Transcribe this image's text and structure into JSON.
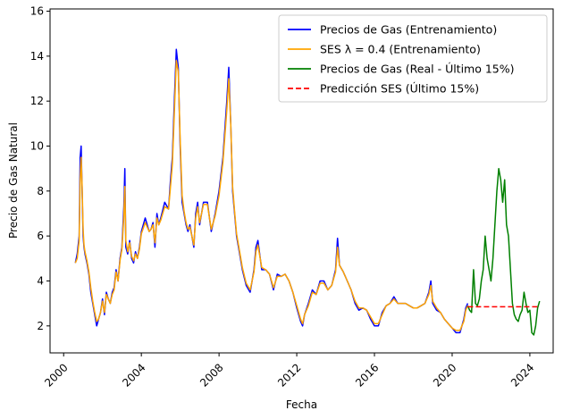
{
  "chart_data": {
    "type": "line",
    "xlabel": "Fecha",
    "ylabel": "Precio de Gas Natural",
    "xlim": [
      1999.3,
      2025.2
    ],
    "ylim": [
      0.8,
      16.1
    ],
    "x_ticks": [
      2000,
      2004,
      2008,
      2012,
      2016,
      2020,
      2024
    ],
    "x_tick_labels": [
      "2000",
      "2004",
      "2008",
      "2012",
      "2016",
      "2020",
      "2024"
    ],
    "y_ticks": [
      2,
      4,
      6,
      8,
      10,
      12,
      14,
      16
    ],
    "y_tick_labels": [
      "2",
      "4",
      "6",
      "8",
      "10",
      "12",
      "14",
      "16"
    ],
    "grid": false,
    "legend_position": "top-right",
    "series": [
      {
        "name": "Precios de Gas (Entrenamiento)",
        "color": "#0000ff",
        "style": "solid",
        "x": [
          2000.6,
          2000.7,
          2000.8,
          2000.85,
          2000.9,
          2000.95,
          2001.0,
          2001.05,
          2001.1,
          2001.2,
          2001.3,
          2001.4,
          2001.5,
          2001.6,
          2001.7,
          2001.8,
          2001.9,
          2002.0,
          2002.1,
          2002.2,
          2002.3,
          2002.4,
          2002.5,
          2002.6,
          2002.7,
          2002.8,
          2002.9,
          2003.0,
          2003.1,
          2003.15,
          2003.2,
          2003.3,
          2003.4,
          2003.5,
          2003.6,
          2003.7,
          2003.8,
          2003.9,
          2004.0,
          2004.2,
          2004.4,
          2004.5,
          2004.6,
          2004.7,
          2004.8,
          2004.9,
          2005.0,
          2005.2,
          2005.4,
          2005.5,
          2005.6,
          2005.7,
          2005.8,
          2005.9,
          2006.0,
          2006.1,
          2006.2,
          2006.3,
          2006.4,
          2006.5,
          2006.6,
          2006.7,
          2006.8,
          2006.9,
          2007.0,
          2007.2,
          2007.4,
          2007.6,
          2007.8,
          2008.0,
          2008.2,
          2008.4,
          2008.5,
          2008.6,
          2008.7,
          2008.8,
          2008.9,
          2009.0,
          2009.2,
          2009.4,
          2009.6,
          2009.7,
          2009.8,
          2009.9,
          2010.0,
          2010.2,
          2010.4,
          2010.6,
          2010.8,
          2011.0,
          2011.2,
          2011.4,
          2011.6,
          2011.8,
          2012.0,
          2012.2,
          2012.3,
          2012.4,
          2012.6,
          2012.8,
          2013.0,
          2013.2,
          2013.4,
          2013.6,
          2013.8,
          2014.0,
          2014.1,
          2014.2,
          2014.4,
          2014.6,
          2014.8,
          2015.0,
          2015.2,
          2015.4,
          2015.6,
          2015.8,
          2016.0,
          2016.2,
          2016.4,
          2016.6,
          2016.8,
          2017.0,
          2017.2,
          2017.4,
          2017.6,
          2017.8,
          2018.0,
          2018.2,
          2018.4,
          2018.6,
          2018.8,
          2018.9,
          2019.0,
          2019.2,
          2019.4,
          2019.6,
          2019.8,
          2020.0,
          2020.2,
          2020.4,
          2020.6,
          2020.7,
          2020.8
        ],
        "y": [
          4.8,
          5.2,
          6.0,
          9.5,
          10.0,
          8.0,
          6.0,
          5.5,
          5.2,
          4.8,
          4.3,
          3.5,
          3.0,
          2.5,
          2.0,
          2.3,
          2.6,
          3.2,
          2.5,
          3.5,
          3.2,
          3.0,
          3.5,
          3.7,
          4.5,
          4.0,
          5.0,
          5.5,
          7.3,
          9.0,
          5.5,
          5.2,
          5.8,
          5.0,
          4.8,
          5.3,
          5.0,
          5.5,
          6.2,
          6.8,
          6.2,
          6.3,
          6.6,
          5.5,
          7.0,
          6.5,
          6.8,
          7.5,
          7.2,
          8.5,
          9.5,
          12.0,
          14.3,
          13.5,
          10.0,
          7.5,
          7.0,
          6.5,
          6.2,
          6.5,
          6.0,
          5.5,
          7.0,
          7.5,
          6.5,
          7.5,
          7.5,
          6.2,
          7.0,
          8.0,
          9.5,
          12.0,
          13.5,
          11.0,
          8.0,
          7.0,
          6.0,
          5.5,
          4.5,
          3.8,
          3.5,
          4.0,
          4.5,
          5.5,
          5.8,
          4.5,
          4.5,
          4.3,
          3.6,
          4.3,
          4.2,
          4.3,
          4.0,
          3.5,
          2.8,
          2.2,
          2.0,
          2.5,
          3.0,
          3.6,
          3.4,
          4.0,
          4.0,
          3.6,
          3.8,
          4.5,
          5.9,
          4.7,
          4.4,
          4.0,
          3.6,
          3.0,
          2.7,
          2.8,
          2.7,
          2.3,
          2.0,
          2.0,
          2.6,
          2.9,
          3.0,
          3.3,
          3.0,
          3.0,
          3.0,
          2.9,
          2.8,
          2.8,
          2.9,
          3.0,
          3.5,
          4.0,
          3.0,
          2.7,
          2.6,
          2.3,
          2.1,
          1.9,
          1.7,
          1.7,
          2.3,
          2.8,
          3.0
        ]
      },
      {
        "name": "SES λ = 0.4 (Entrenamiento)",
        "color": "#ffa500",
        "style": "solid",
        "x": [
          2000.6,
          2000.7,
          2000.8,
          2000.85,
          2000.9,
          2000.95,
          2001.0,
          2001.05,
          2001.1,
          2001.2,
          2001.3,
          2001.4,
          2001.5,
          2001.6,
          2001.7,
          2001.8,
          2001.9,
          2002.0,
          2002.1,
          2002.2,
          2002.3,
          2002.4,
          2002.5,
          2002.6,
          2002.7,
          2002.8,
          2002.9,
          2003.0,
          2003.1,
          2003.15,
          2003.2,
          2003.3,
          2003.4,
          2003.5,
          2003.6,
          2003.7,
          2003.8,
          2003.9,
          2004.0,
          2004.2,
          2004.4,
          2004.5,
          2004.6,
          2004.7,
          2004.8,
          2004.9,
          2005.0,
          2005.2,
          2005.4,
          2005.5,
          2005.6,
          2005.7,
          2005.8,
          2005.9,
          2006.0,
          2006.1,
          2006.2,
          2006.3,
          2006.4,
          2006.5,
          2006.6,
          2006.7,
          2006.8,
          2006.9,
          2007.0,
          2007.2,
          2007.4,
          2007.6,
          2007.8,
          2008.0,
          2008.2,
          2008.4,
          2008.5,
          2008.6,
          2008.7,
          2008.8,
          2008.9,
          2009.0,
          2009.2,
          2009.4,
          2009.6,
          2009.7,
          2009.8,
          2009.9,
          2010.0,
          2010.2,
          2010.4,
          2010.6,
          2010.8,
          2011.0,
          2011.2,
          2011.4,
          2011.6,
          2011.8,
          2012.0,
          2012.2,
          2012.3,
          2012.4,
          2012.6,
          2012.8,
          2013.0,
          2013.2,
          2013.4,
          2013.6,
          2013.8,
          2014.0,
          2014.1,
          2014.2,
          2014.4,
          2014.6,
          2014.8,
          2015.0,
          2015.2,
          2015.4,
          2015.6,
          2015.8,
          2016.0,
          2016.2,
          2016.4,
          2016.6,
          2016.8,
          2017.0,
          2017.2,
          2017.4,
          2017.6,
          2017.8,
          2018.0,
          2018.2,
          2018.4,
          2018.6,
          2018.8,
          2018.9,
          2019.0,
          2019.2,
          2019.4,
          2019.6,
          2019.8,
          2020.0,
          2020.2,
          2020.4,
          2020.6,
          2020.7,
          2020.8
        ],
        "y": [
          4.8,
          5.0,
          5.8,
          8.5,
          9.5,
          8.2,
          6.3,
          5.6,
          5.3,
          4.9,
          4.4,
          3.7,
          3.1,
          2.6,
          2.2,
          2.3,
          2.6,
          3.1,
          2.6,
          3.4,
          3.2,
          3.0,
          3.4,
          3.6,
          4.4,
          4.0,
          4.9,
          5.4,
          6.9,
          8.2,
          5.8,
          5.3,
          5.7,
          5.1,
          4.9,
          5.2,
          5.0,
          5.4,
          6.1,
          6.6,
          6.2,
          6.3,
          6.5,
          5.7,
          6.8,
          6.5,
          6.7,
          7.3,
          7.2,
          8.2,
          9.2,
          11.5,
          13.8,
          13.3,
          10.3,
          7.8,
          7.1,
          6.6,
          6.3,
          6.4,
          6.0,
          5.6,
          6.8,
          7.3,
          6.6,
          7.4,
          7.4,
          6.3,
          6.9,
          7.8,
          9.3,
          11.6,
          13.0,
          11.0,
          8.2,
          7.1,
          6.1,
          5.6,
          4.6,
          3.9,
          3.6,
          4.0,
          4.4,
          5.3,
          5.6,
          4.6,
          4.5,
          4.3,
          3.7,
          4.2,
          4.2,
          4.3,
          4.0,
          3.5,
          2.9,
          2.3,
          2.1,
          2.5,
          2.9,
          3.5,
          3.4,
          3.9,
          3.9,
          3.6,
          3.8,
          4.4,
          5.5,
          4.7,
          4.4,
          4.0,
          3.6,
          3.1,
          2.8,
          2.8,
          2.7,
          2.4,
          2.1,
          2.1,
          2.5,
          2.9,
          3.0,
          3.2,
          3.0,
          3.0,
          3.0,
          2.9,
          2.8,
          2.8,
          2.9,
          3.0,
          3.4,
          3.8,
          3.1,
          2.8,
          2.6,
          2.3,
          2.1,
          1.9,
          1.8,
          1.8,
          2.2,
          2.7,
          2.9
        ]
      },
      {
        "name": "Precios de Gas (Real - Último 15%)",
        "color": "#008000",
        "style": "solid",
        "x": [
          2020.8,
          2020.9,
          2021.0,
          2021.1,
          2021.2,
          2021.3,
          2021.4,
          2021.5,
          2021.6,
          2021.7,
          2021.8,
          2021.9,
          2022.0,
          2022.1,
          2022.2,
          2022.3,
          2022.4,
          2022.5,
          2022.6,
          2022.7,
          2022.8,
          2022.9,
          2023.0,
          2023.1,
          2023.2,
          2023.3,
          2023.4,
          2023.5,
          2023.6,
          2023.7,
          2023.8,
          2023.9,
          2024.0,
          2024.1,
          2024.2,
          2024.3,
          2024.4,
          2024.5
        ],
        "y": [
          2.9,
          2.7,
          2.6,
          4.5,
          3.0,
          2.9,
          3.2,
          4.0,
          4.5,
          6.0,
          5.0,
          4.5,
          4.0,
          5.0,
          6.5,
          8.0,
          9.0,
          8.5,
          7.5,
          8.5,
          6.5,
          6.0,
          4.5,
          3.0,
          2.5,
          2.3,
          2.2,
          2.5,
          2.7,
          3.5,
          3.0,
          2.6,
          2.7,
          1.7,
          1.6,
          2.0,
          2.8,
          3.1
        ]
      },
      {
        "name": "Predicción SES (Último 15%)",
        "color": "#ff0000",
        "style": "dashed",
        "x": [
          2020.8,
          2024.5
        ],
        "y": [
          2.85,
          2.85
        ]
      }
    ]
  }
}
